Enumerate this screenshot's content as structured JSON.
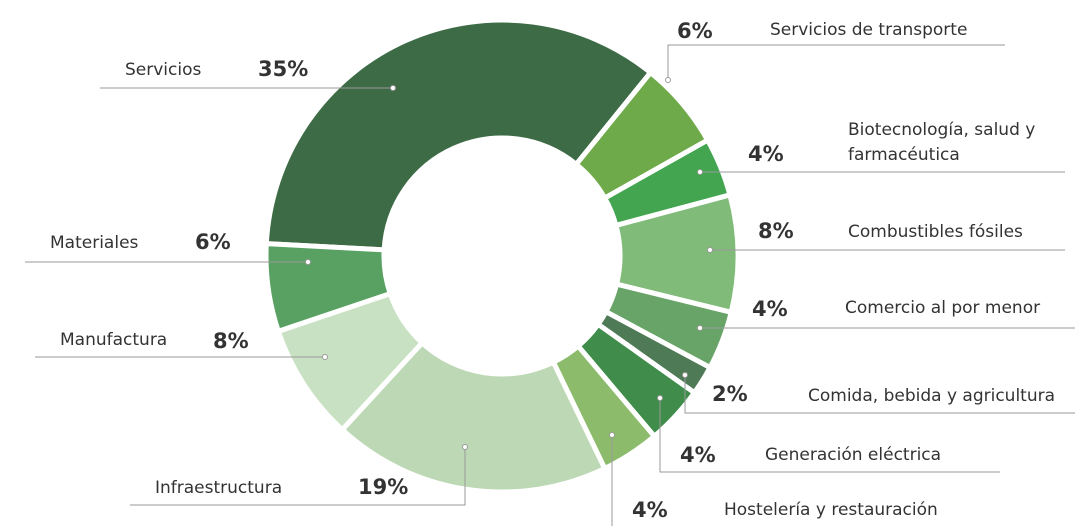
{
  "chart_data": {
    "type": "donut",
    "categories": [
      "Servicios",
      "Servicios de transporte",
      "Biotecnología, salud y farmacéutica",
      "Combustibles fósiles",
      "Comercio al por menor",
      "Comida, bebida y agricultura",
      "Generación eléctrica",
      "Hostelería y restauración",
      "Infraestructura",
      "Manufactura",
      "Materiales"
    ],
    "values": [
      35,
      6,
      4,
      8,
      4,
      2,
      4,
      4,
      19,
      8,
      6
    ],
    "value_labels": [
      "35%",
      "6%",
      "4%",
      "8%",
      "4%",
      "2%",
      "4%",
      "4%",
      "19%",
      "8%",
      "6%"
    ],
    "colors": [
      "#3d6b45",
      "#6faa4a",
      "#43a550",
      "#80bb7a",
      "#68a468",
      "#4f7a56",
      "#3f8c4b",
      "#8cbb6c",
      "#bcd8b4",
      "#c9e1c3",
      "#58a162"
    ]
  }
}
